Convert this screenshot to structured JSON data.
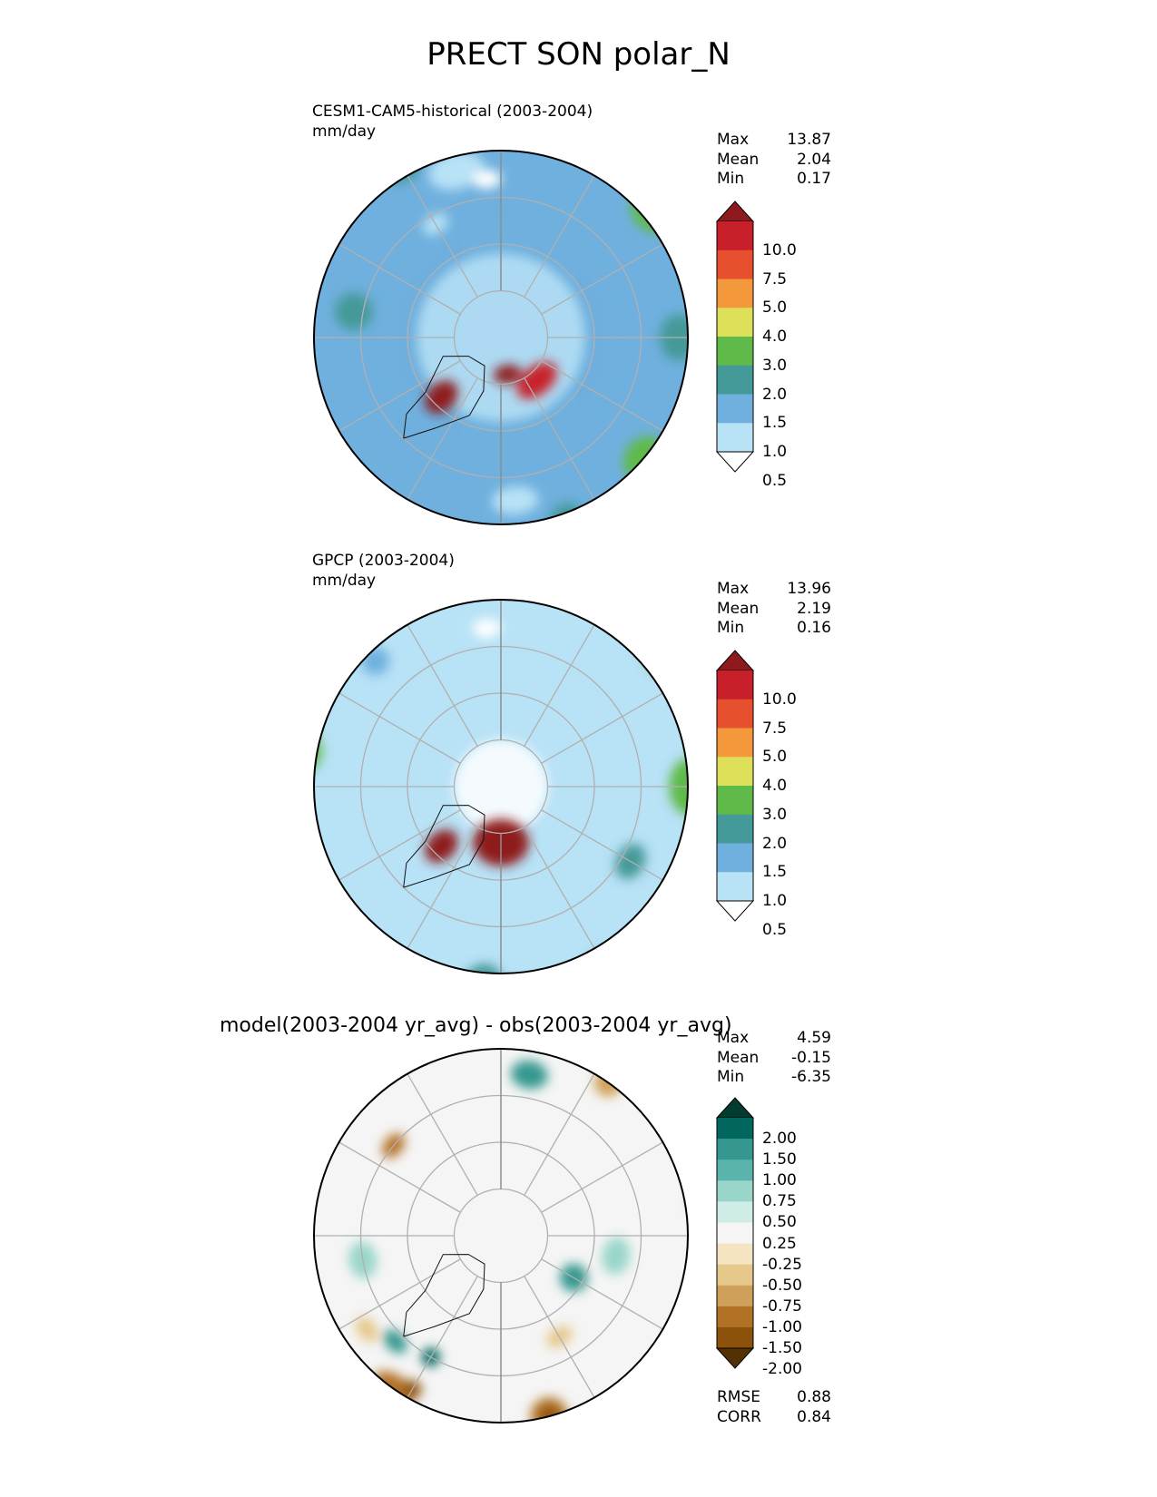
{
  "figure_title": "PRECT SON polar_N",
  "chart_data": [
    {
      "type": "heatmap",
      "projection": "north-polar-stereographic",
      "title": "CESM1-CAM5-historical (2003-2004)",
      "units": "mm/day",
      "stats": [
        {
          "label": "Max",
          "value": "13.87"
        },
        {
          "label": "Mean",
          "value": "2.04"
        },
        {
          "label": "Min",
          "value": "0.17"
        }
      ],
      "colorbar": {
        "levels": [
          "10.0",
          "7.5",
          "5.0",
          "4.0",
          "3.0",
          "2.0",
          "1.5",
          "1.0",
          "0.5"
        ],
        "colors": [
          "#8e1a1e",
          "#c8202a",
          "#e6502e",
          "#f3993c",
          "#dfe05a",
          "#5fba4a",
          "#449a98",
          "#6fb0de",
          "#b8e2f6",
          "#ffffff"
        ],
        "extend": "both"
      },
      "regions": [
        {
          "level": 1,
          "lat": 78,
          "lon": 40,
          "sx": 5,
          "sy": 3
        },
        {
          "level": 0,
          "lat": 82,
          "lon": 10,
          "sx": 3,
          "sy": 2
        },
        {
          "level": 0,
          "lat": 72,
          "lon": -45,
          "sx": 3,
          "sy": 4
        },
        {
          "level": 8,
          "lat": 53,
          "lon": -165,
          "sx": 6,
          "sy": 4
        },
        {
          "level": 9,
          "lat": 56,
          "lon": -175,
          "sx": 3,
          "sy": 2
        },
        {
          "level": 7,
          "lat": 52,
          "lon": -135,
          "sx": 3,
          "sy": 3
        },
        {
          "level": 6,
          "lat": 48,
          "lon": -150,
          "sx": 4,
          "sy": 3
        },
        {
          "level": 8,
          "lat": 55,
          "lon": 5,
          "sx": 5,
          "sy": 3
        },
        {
          "level": 7,
          "lat": 45,
          "lon": -20,
          "sx": 5,
          "sy": 4
        },
        {
          "level": 6,
          "lat": 48,
          "lon": 20,
          "sx": 4,
          "sy": 4
        },
        {
          "level": 4,
          "lat": 42,
          "lon": -45,
          "sx": 5,
          "sy": 4
        },
        {
          "level": 5,
          "lat": 50,
          "lon": 50,
          "sx": 5,
          "sy": 4
        },
        {
          "level": 6,
          "lat": 52,
          "lon": 90,
          "sx": 5,
          "sy": 4
        },
        {
          "level": 5,
          "lat": 48,
          "lon": 130,
          "sx": 5,
          "sy": 4
        },
        {
          "level": 7,
          "lat": 40,
          "lon": -70,
          "sx": 5,
          "sy": 4
        },
        {
          "level": 6,
          "lat": 42,
          "lon": -95,
          "sx": 5,
          "sy": 4
        },
        {
          "level": 8,
          "lat": 62,
          "lon": -150,
          "sx": 3,
          "sy": 2
        },
        {
          "level": 6,
          "lat": 58,
          "lon": -100,
          "sx": 4,
          "sy": 4
        }
      ]
    },
    {
      "type": "heatmap",
      "projection": "north-polar-stereographic",
      "title": "GPCP (2003-2004)",
      "units": "mm/day",
      "stats": [
        {
          "label": "Max",
          "value": "13.96"
        },
        {
          "label": "Mean",
          "value": "2.19"
        },
        {
          "label": "Min",
          "value": "0.16"
        }
      ],
      "colorbar": {
        "levels": [
          "10.0",
          "7.5",
          "5.0",
          "4.0",
          "3.0",
          "2.0",
          "1.5",
          "1.0",
          "0.5"
        ],
        "colors": [
          "#8e1a1e",
          "#c8202a",
          "#e6502e",
          "#f3993c",
          "#dfe05a",
          "#5fba4a",
          "#449a98",
          "#6fb0de",
          "#b8e2f6",
          "#ffffff"
        ],
        "extend": "both"
      },
      "regions": [
        {
          "level": 0,
          "lat": 78,
          "lon": 0,
          "sx": 6,
          "sy": 5
        },
        {
          "level": 0,
          "lat": 72,
          "lon": -45,
          "sx": 3,
          "sy": 4
        },
        {
          "level": 8,
          "lat": 53,
          "lon": -165,
          "sx": 6,
          "sy": 4
        },
        {
          "level": 9,
          "lat": 56,
          "lon": -175,
          "sx": 3,
          "sy": 2
        },
        {
          "level": 7,
          "lat": 52,
          "lon": -135,
          "sx": 3,
          "sy": 3
        },
        {
          "level": 7,
          "lat": 45,
          "lon": 30,
          "sx": 5,
          "sy": 4
        },
        {
          "level": 6,
          "lat": 42,
          "lon": 10,
          "sx": 4,
          "sy": 4
        },
        {
          "level": 4,
          "lat": 42,
          "lon": -45,
          "sx": 5,
          "sy": 4
        },
        {
          "level": 5,
          "lat": 50,
          "lon": 90,
          "sx": 6,
          "sy": 4
        },
        {
          "level": 5,
          "lat": 45,
          "lon": 130,
          "sx": 6,
          "sy": 4
        },
        {
          "level": 6,
          "lat": 48,
          "lon": -5,
          "sx": 4,
          "sy": 4
        },
        {
          "level": 8,
          "lat": 55,
          "lon": -10,
          "sx": 3,
          "sy": 2
        },
        {
          "level": 5,
          "lat": 48,
          "lon": -100,
          "sx": 4,
          "sy": 3
        },
        {
          "level": 7,
          "lat": 45,
          "lon": -70,
          "sx": 4,
          "sy": 3
        },
        {
          "level": 6,
          "lat": 58,
          "lon": 60,
          "sx": 4,
          "sy": 3
        }
      ]
    },
    {
      "type": "heatmap",
      "projection": "north-polar-stereographic",
      "title": "model(2003-2004 yr_avg) - obs(2003-2004 yr_avg)",
      "units": "",
      "stats": [
        {
          "label": "Max",
          "value": "4.59"
        },
        {
          "label": "Mean",
          "value": "-0.15"
        },
        {
          "label": "Min",
          "value": "-6.35"
        }
      ],
      "metrics": [
        {
          "label": "RMSE",
          "value": "0.88"
        },
        {
          "label": "CORR",
          "value": "0.84"
        }
      ],
      "colorbar": {
        "levels": [
          "2.00",
          "1.50",
          "1.00",
          "0.75",
          "0.50",
          "0.25",
          "-0.25",
          "-0.50",
          "-0.75",
          "-1.00",
          "-1.50",
          "-2.00"
        ],
        "colors": [
          "#013c30",
          "#01665e",
          "#35978f",
          "#5ab4ac",
          "#99d5c9",
          "#cfece7",
          "#f5f5f5",
          "#f4e4c2",
          "#e5c88a",
          "#cfa05a",
          "#b27226",
          "#8c510a",
          "#543005"
        ],
        "extend": "both"
      },
      "regions": [
        {
          "level": 2,
          "lat": 72,
          "lon": 60,
          "sx": 3,
          "sy": 3
        },
        {
          "level": 4,
          "lat": 65,
          "lon": 80,
          "sx": 4,
          "sy": 3
        },
        {
          "level": 2,
          "lat": 55,
          "lon": 170,
          "sx": 4,
          "sy": 3
        },
        {
          "level": 1,
          "lat": 60,
          "lon": -30,
          "sx": 2,
          "sy": 2
        },
        {
          "level": 2,
          "lat": 58,
          "lon": -45,
          "sx": 3,
          "sy": 2
        },
        {
          "level": 1,
          "lat": 42,
          "lon": -130,
          "sx": 3,
          "sy": 2
        },
        {
          "level": 2,
          "lat": 45,
          "lon": -120,
          "sx": 3,
          "sy": 3
        },
        {
          "level": 3,
          "lat": 40,
          "lon": -150,
          "sx": 3,
          "sy": 2
        },
        {
          "level": 3,
          "lat": 45,
          "lon": 75,
          "sx": 3,
          "sy": 2
        },
        {
          "level": 4,
          "lat": 60,
          "lon": -80,
          "sx": 4,
          "sy": 3
        },
        {
          "level": 10,
          "lat": 50,
          "lon": 15,
          "sx": 4,
          "sy": 4
        },
        {
          "level": 11,
          "lat": 50,
          "lon": 15,
          "sx": 2,
          "sy": 2
        },
        {
          "level": 10,
          "lat": 45,
          "lon": 100,
          "sx": 3,
          "sy": 4
        },
        {
          "level": 11,
          "lat": 45,
          "lon": 105,
          "sx": 2,
          "sy": 2
        },
        {
          "level": 10,
          "lat": 50,
          "lon": -35,
          "sx": 5,
          "sy": 3
        },
        {
          "level": 11,
          "lat": 52,
          "lon": -30,
          "sx": 2,
          "sy": 2
        },
        {
          "level": 9,
          "lat": 50,
          "lon": 145,
          "sx": 3,
          "sy": 3
        },
        {
          "level": 10,
          "lat": 60,
          "lon": -130,
          "sx": 3,
          "sy": 2
        },
        {
          "level": 9,
          "lat": 45,
          "lon": -160,
          "sx": 3,
          "sy": 3
        },
        {
          "level": 9,
          "lat": 40,
          "lon": -75,
          "sx": 4,
          "sy": 3
        },
        {
          "level": 8,
          "lat": 55,
          "lon": -55,
          "sx": 3,
          "sy": 2
        },
        {
          "level": 10,
          "lat": 42,
          "lon": -10,
          "sx": 3,
          "sy": 2
        },
        {
          "level": 8,
          "lat": 65,
          "lon": 30,
          "sx": 3,
          "sy": 2
        }
      ]
    }
  ]
}
